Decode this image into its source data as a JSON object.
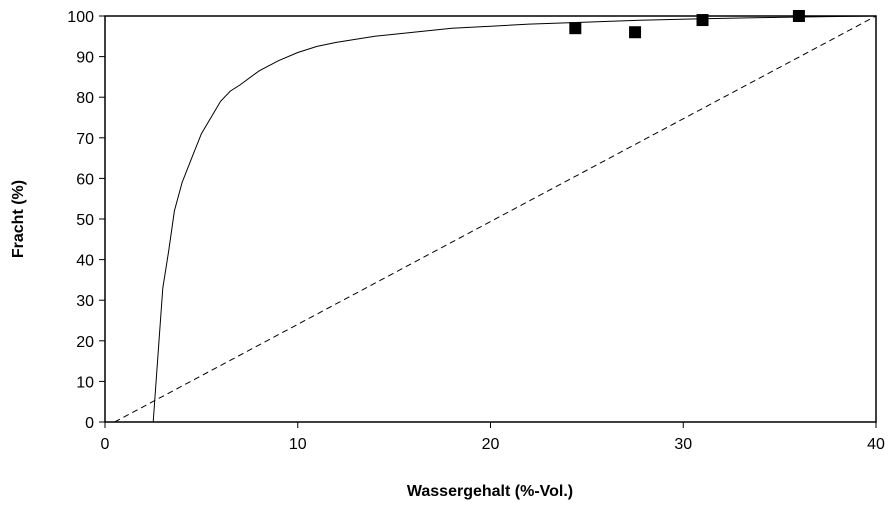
{
  "chart_data": {
    "type": "scatter",
    "title": "",
    "xlabel": "Wassergehalt (%-Vol.)",
    "ylabel": "Fracht (%)",
    "xlim": [
      0,
      40
    ],
    "ylim": [
      0,
      100
    ],
    "x_ticks": [
      0,
      10,
      20,
      30,
      40
    ],
    "y_ticks": [
      0,
      10,
      20,
      30,
      40,
      50,
      60,
      70,
      80,
      90,
      100
    ],
    "grid": false,
    "legend": "none",
    "series": [
      {
        "type": "scatter",
        "marker": "square",
        "color": "#000000",
        "x": [
          24.4,
          27.5,
          31.0,
          36.0
        ],
        "y": [
          97,
          96,
          99,
          100
        ]
      },
      {
        "type": "line",
        "style": "solid",
        "color": "#000000",
        "x": [
          2.5,
          2.8,
          3.0,
          3.3,
          3.6,
          4.0,
          4.5,
          5.0,
          5.5,
          6.0,
          6.5,
          7.0,
          8.0,
          9.0,
          10.0,
          11.0,
          12.0,
          14.0,
          16.0,
          18.0,
          20.0,
          22.0,
          25.0,
          28.0,
          31.0,
          34.0,
          37.0,
          40.0
        ],
        "y": [
          0,
          20,
          33,
          42,
          52,
          59,
          65,
          71,
          75,
          79,
          81.5,
          83,
          86.5,
          89,
          91,
          92.5,
          93.5,
          95,
          96,
          97,
          97.5,
          98,
          98.5,
          99,
          99.3,
          99.6,
          99.8,
          100
        ]
      },
      {
        "type": "line",
        "style": "dashed",
        "color": "#000000",
        "x": [
          0.5,
          40
        ],
        "y": [
          0,
          100
        ]
      }
    ]
  }
}
